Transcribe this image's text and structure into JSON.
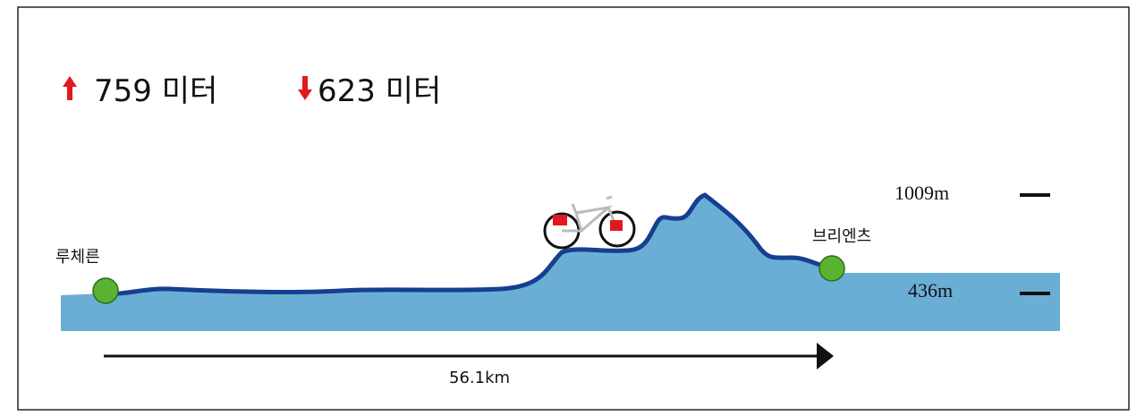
{
  "stats": {
    "ascent": "759 미터",
    "descent": "623 미터"
  },
  "altitudes": {
    "high": "1009m",
    "low": "436m"
  },
  "places": {
    "start": "루체른",
    "end": "브리엔츠"
  },
  "distance": "56.1km"
}
